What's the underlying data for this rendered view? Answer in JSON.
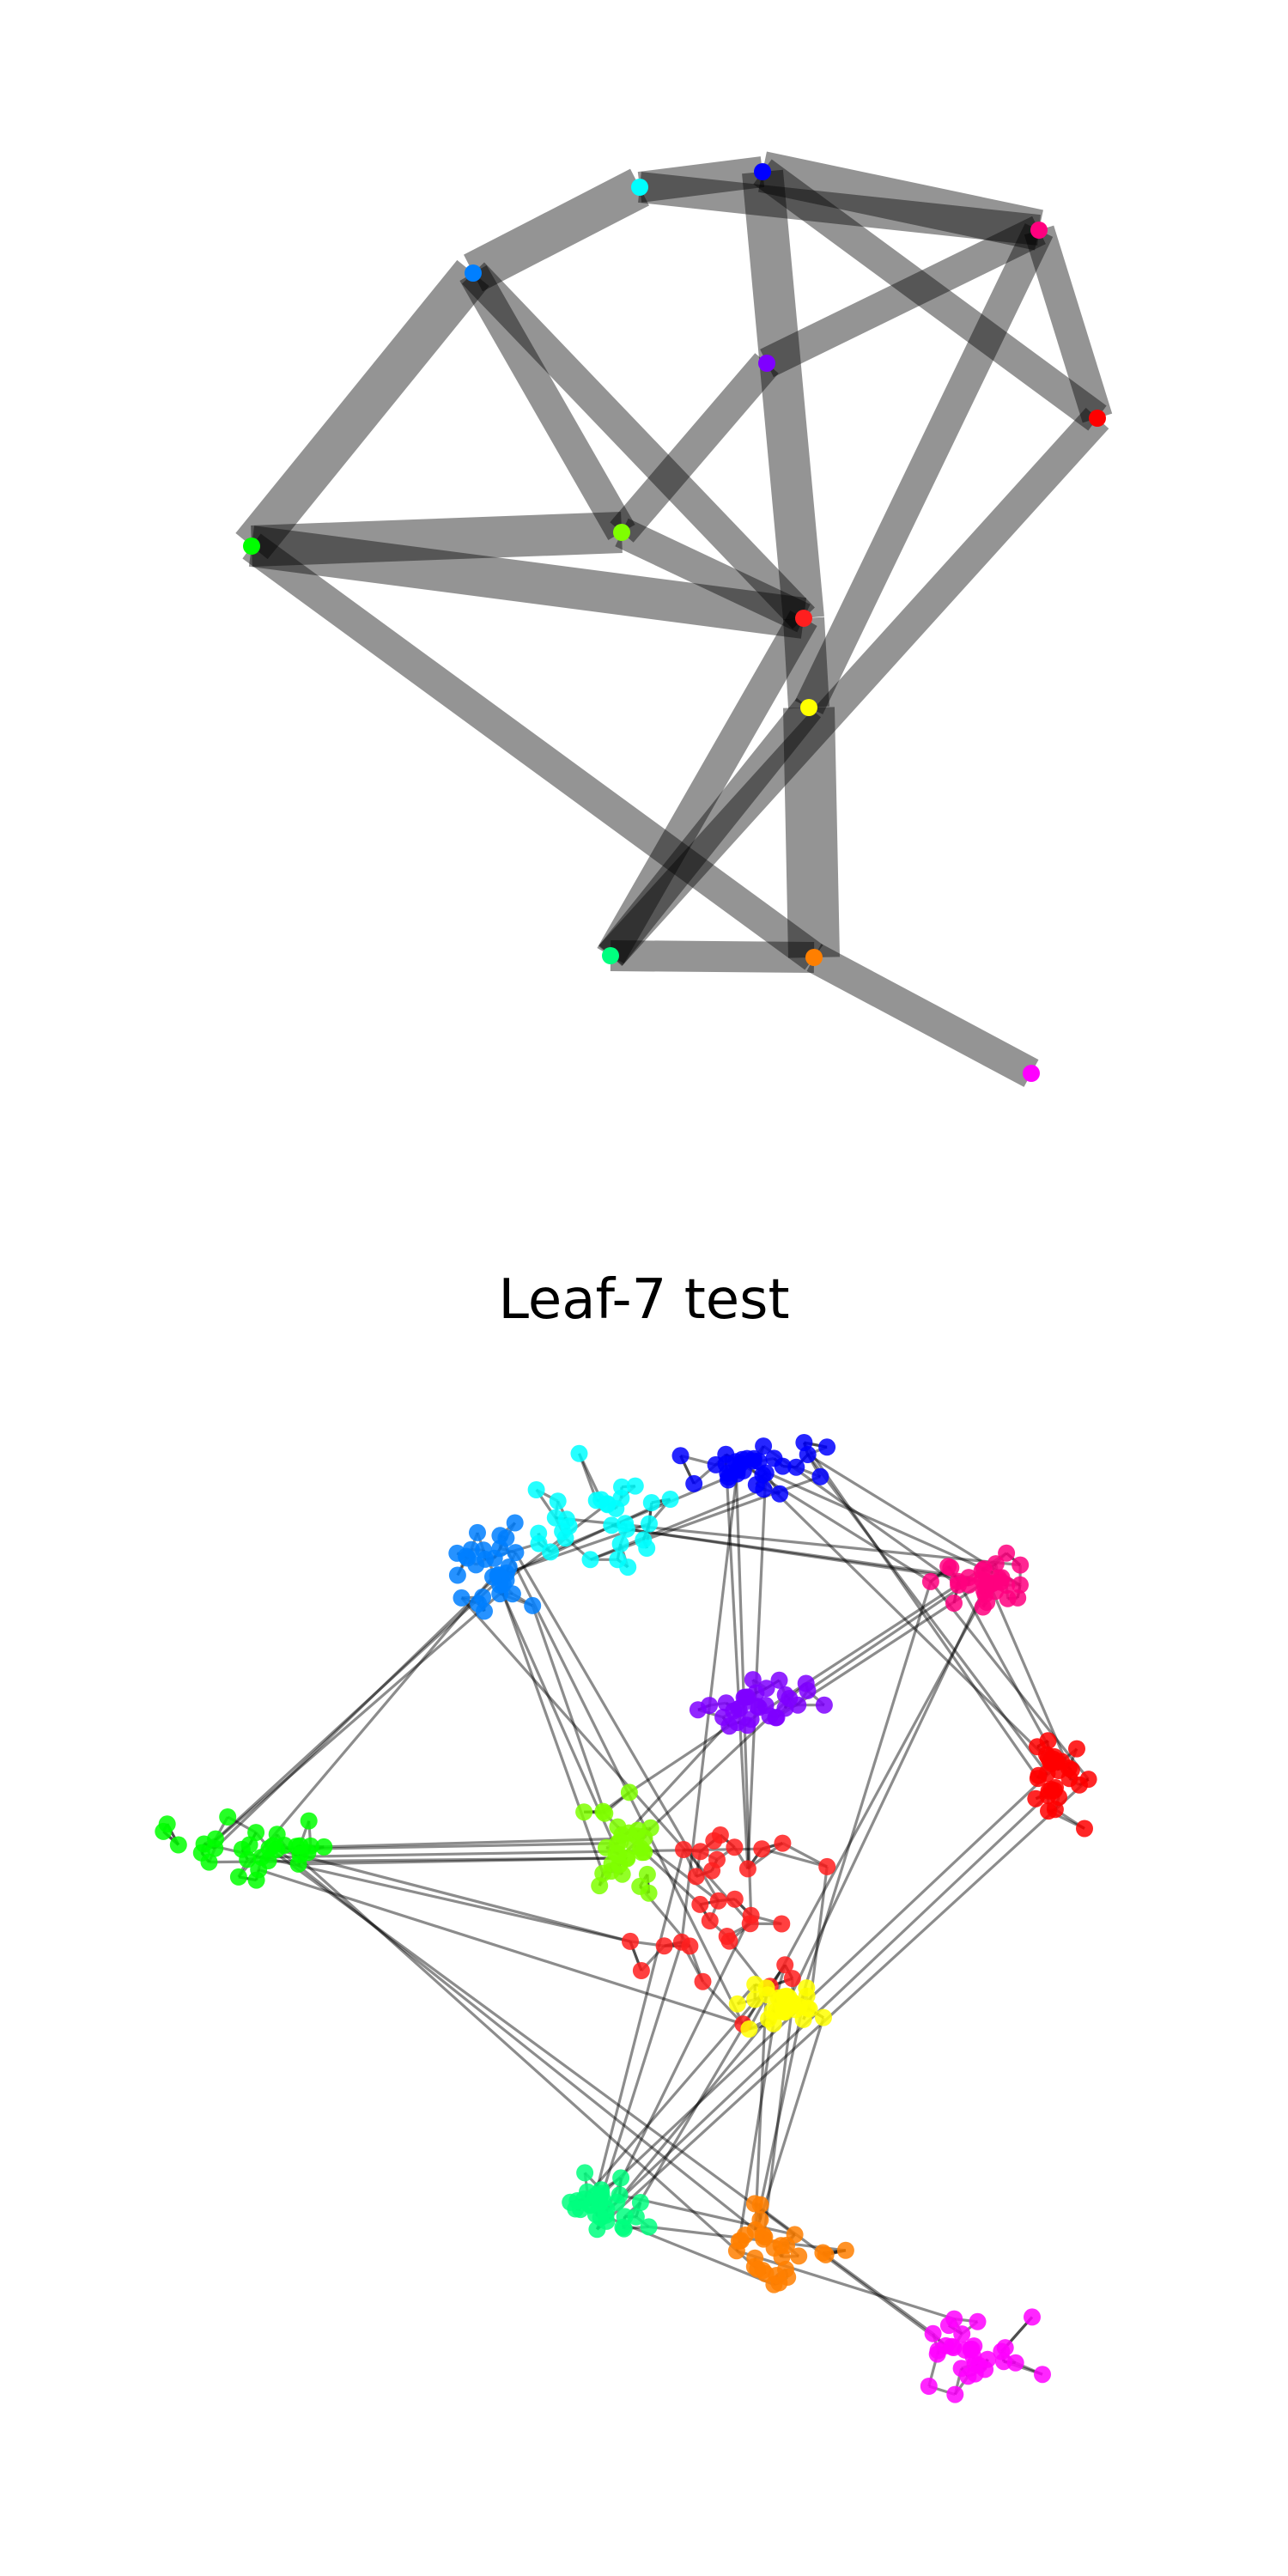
{
  "title": "Leaf-7 test",
  "palette": {
    "c0": "#ff1f1f",
    "c1": "#ff7f00",
    "c2": "#ffff00",
    "c3": "#7fff00",
    "c4": "#00ff00",
    "c5": "#00ff7f",
    "c6": "#00ffff",
    "c7": "#007fff",
    "c8": "#0000ff",
    "c9": "#7f00ff",
    "c10": "#ff00ff",
    "c11": "#ff007f",
    "c12": "#ff0000"
  },
  "edge_color": "#000000",
  "cluster_graph": {
    "nodes": [
      {
        "id": "blue",
        "color": "c8"
      },
      {
        "id": "cyan",
        "color": "c6"
      },
      {
        "id": "azure",
        "color": "c7"
      },
      {
        "id": "pink",
        "color": "c11"
      },
      {
        "id": "purple",
        "color": "c9"
      },
      {
        "id": "red2",
        "color": "c12"
      },
      {
        "id": "green",
        "color": "c4"
      },
      {
        "id": "lime",
        "color": "c3"
      },
      {
        "id": "red",
        "color": "c0"
      },
      {
        "id": "yellow",
        "color": "c2"
      },
      {
        "id": "spring",
        "color": "c5"
      },
      {
        "id": "orange",
        "color": "c1"
      },
      {
        "id": "magenta",
        "color": "c10"
      }
    ],
    "edges": [
      {
        "source": "cyan",
        "target": "blue",
        "weight": 3
      },
      {
        "source": "cyan",
        "target": "azure",
        "weight": 4
      },
      {
        "source": "blue",
        "target": "pink",
        "weight": 4
      },
      {
        "source": "cyan",
        "target": "pink",
        "weight": 3
      },
      {
        "source": "blue",
        "target": "red2",
        "weight": 3
      },
      {
        "source": "blue",
        "target": "red",
        "weight": 4
      },
      {
        "source": "pink",
        "target": "purple",
        "weight": 3
      },
      {
        "source": "pink",
        "target": "red2",
        "weight": 3
      },
      {
        "source": "pink",
        "target": "yellow",
        "weight": 3
      },
      {
        "source": "azure",
        "target": "green",
        "weight": 4
      },
      {
        "source": "azure",
        "target": "lime",
        "weight": 3
      },
      {
        "source": "azure",
        "target": "red",
        "weight": 3
      },
      {
        "source": "purple",
        "target": "lime",
        "weight": 3
      },
      {
        "source": "green",
        "target": "lime",
        "weight": 4
      },
      {
        "source": "green",
        "target": "red",
        "weight": 4
      },
      {
        "source": "green",
        "target": "orange",
        "weight": 3
      },
      {
        "source": "lime",
        "target": "red",
        "weight": 3
      },
      {
        "source": "red",
        "target": "yellow",
        "weight": 4
      },
      {
        "source": "red",
        "target": "spring",
        "weight": 3
      },
      {
        "source": "red2",
        "target": "spring",
        "weight": 3
      },
      {
        "source": "yellow",
        "target": "orange",
        "weight": 5
      },
      {
        "source": "yellow",
        "target": "spring",
        "weight": 3
      },
      {
        "source": "spring",
        "target": "orange",
        "weight": 3
      },
      {
        "source": "orange",
        "target": "magenta",
        "weight": 3
      }
    ]
  },
  "leaf_graph": {
    "node_count": 400,
    "clusters": [
      {
        "id": "blue",
        "color": "c8"
      },
      {
        "id": "cyan",
        "color": "c6"
      },
      {
        "id": "azure",
        "color": "c7"
      },
      {
        "id": "pink",
        "color": "c11"
      },
      {
        "id": "purple",
        "color": "c9"
      },
      {
        "id": "red2",
        "color": "c12"
      },
      {
        "id": "green",
        "color": "c4"
      },
      {
        "id": "lime",
        "color": "c3"
      },
      {
        "id": "red",
        "color": "c0"
      },
      {
        "id": "yellow",
        "color": "c2"
      },
      {
        "id": "spring",
        "color": "c5"
      },
      {
        "id": "orange",
        "color": "c1"
      },
      {
        "id": "magenta",
        "color": "c10"
      }
    ]
  }
}
